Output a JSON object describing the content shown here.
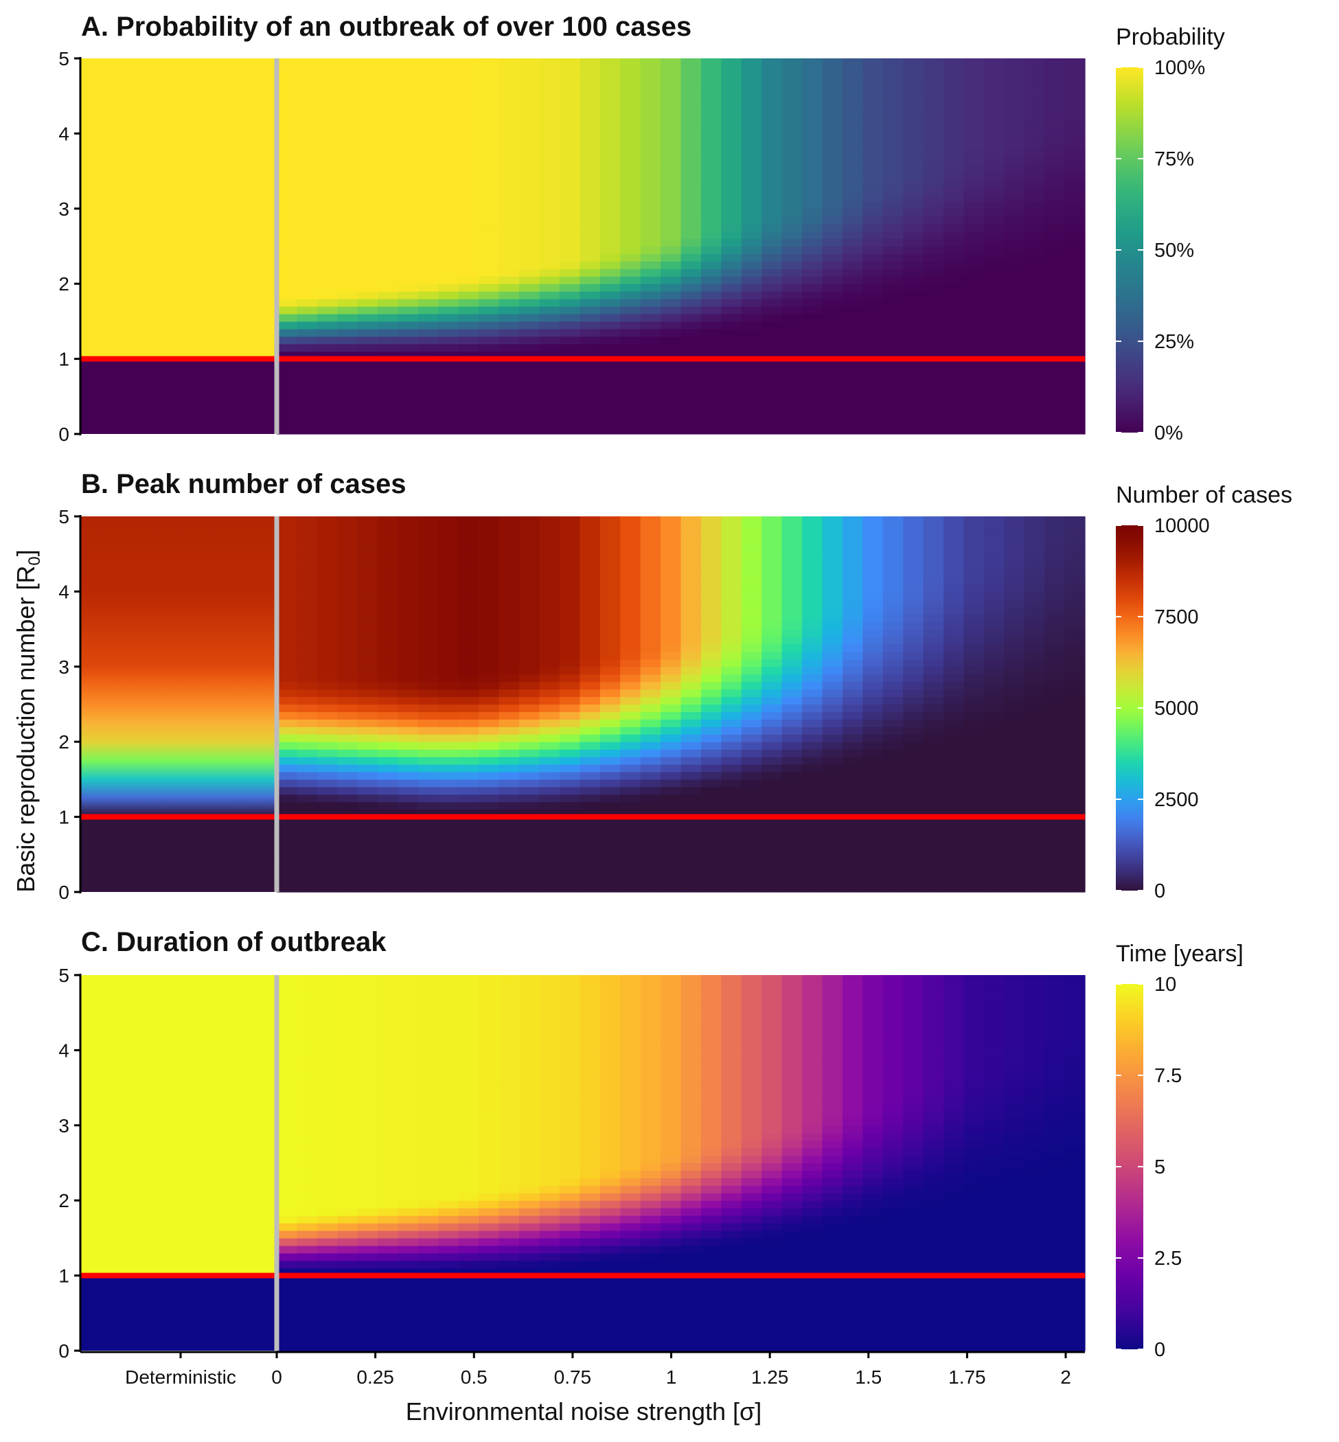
{
  "figure": {
    "ylabel": "Basic reproduction number  [R",
    "ylabel_sub": "0",
    "ylabel_end": "]",
    "xlabel": "Environmental noise strength [σ]"
  },
  "chart_data": [
    {
      "type": "heatmap",
      "title": "A. Probability of an outbreak of over 100 cases",
      "xlabel": "Environmental noise strength [σ]",
      "ylabel": "Basic reproduction number [R0]",
      "x_tick_labels": [
        "Deterministic",
        "0",
        "0.25",
        "0.5",
        "0.75",
        "1",
        "1.25",
        "1.5",
        "1.75",
        "2"
      ],
      "x_ticks_show": false,
      "y_ticks": [
        0,
        1,
        2,
        3,
        4,
        5
      ],
      "xlim": [
        0,
        2
      ],
      "ylim": [
        0,
        5
      ],
      "reference_lines": [
        {
          "axis": "y",
          "value": 1,
          "color": "#ff0000"
        },
        {
          "axis": "x",
          "value": 0,
          "color": "#bdbdbd"
        }
      ],
      "legend": {
        "title": "Probability",
        "ticks": [
          "0%",
          "25%",
          "50%",
          "75%",
          "100%"
        ],
        "values": [
          0,
          0.25,
          0.5,
          0.75,
          1.0
        ],
        "placement": "right"
      },
      "colormap": "viridis",
      "sigma": [
        0.0,
        0.5,
        0.75,
        1.0,
        1.25,
        1.5,
        1.75,
        2.0
      ],
      "values_at_R0_5": [
        1.0,
        1.0,
        0.97,
        0.82,
        0.45,
        0.24,
        0.13,
        0.08
      ],
      "values_at_R0_below_1": 0.0,
      "deterministic_value_R0_above_1": 1.0
    },
    {
      "type": "heatmap",
      "title": "B. Peak number of cases",
      "x_tick_labels": [],
      "y_ticks": [
        0,
        1,
        2,
        3,
        4,
        5
      ],
      "xlim": [
        0,
        2
      ],
      "ylim": [
        0,
        5
      ],
      "reference_lines": [
        {
          "axis": "y",
          "value": 1,
          "color": "#ff0000"
        },
        {
          "axis": "x",
          "value": 0,
          "color": "#bdbdbd"
        }
      ],
      "legend": {
        "title": "Number of cases",
        "ticks": [
          "0",
          "2500",
          "5000",
          "7500",
          "10000"
        ],
        "values": [
          0,
          2500,
          5000,
          7500,
          10000
        ],
        "placement": "right"
      },
      "colormap": "turbo",
      "sigma": [
        0.0,
        0.25,
        0.5,
        0.75,
        1.0,
        1.25,
        1.5,
        1.75,
        2.0
      ],
      "values_at_R0_5": [
        8800,
        9200,
        9700,
        9000,
        7000,
        4500,
        2200,
        900,
        400
      ],
      "values_at_R0_below_1": 0,
      "deterministic_values": {
        "R0": [
          1.0,
          1.5,
          2.0,
          3.0,
          4.0,
          5.0
        ],
        "cases": [
          0,
          3200,
          6000,
          8000,
          8700,
          8800
        ]
      }
    },
    {
      "type": "heatmap",
      "title": "C. Duration of outbreak",
      "x_tick_labels": [
        "Deterministic",
        "0",
        "0.25",
        "0.5",
        "0.75",
        "1",
        "1.25",
        "1.5",
        "1.75",
        "2"
      ],
      "y_ticks": [
        0,
        1,
        2,
        3,
        4,
        5
      ],
      "xlim": [
        0,
        2
      ],
      "ylim": [
        0,
        5
      ],
      "reference_lines": [
        {
          "axis": "y",
          "value": 1,
          "color": "#ff0000"
        },
        {
          "axis": "x",
          "value": 0,
          "color": "#bdbdbd"
        }
      ],
      "legend": {
        "title": "Time [years]",
        "ticks": [
          "0",
          "2.5",
          "5",
          "7.5",
          "10"
        ],
        "values": [
          0,
          2.5,
          5,
          7.5,
          10
        ],
        "placement": "right"
      },
      "colormap": "plasma",
      "sigma": [
        0.0,
        0.5,
        0.75,
        1.0,
        1.25,
        1.5,
        1.75,
        2.0
      ],
      "values_at_R0_5": [
        10,
        9.8,
        9.3,
        8.0,
        5.5,
        2.5,
        0.8,
        0.4
      ],
      "values_at_R0_below_1": 0,
      "deterministic_value_R0_above_1": 10
    }
  ]
}
